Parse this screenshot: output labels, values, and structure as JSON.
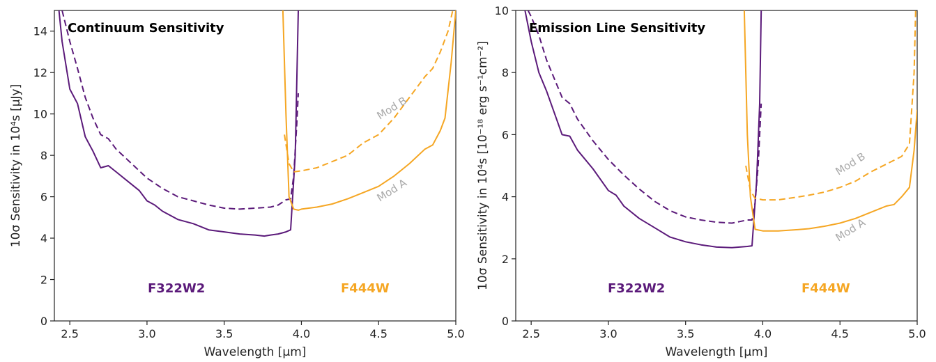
{
  "colors": {
    "f322w2": "#5b1a7a",
    "f444w": "#f5a623",
    "annotation": "#a9a9a9"
  },
  "chart_data": [
    {
      "type": "line",
      "title": "Continuum Sensitivity",
      "xlabel": "Wavelength [μm]",
      "ylabel": "10σ Sensitivity in 10⁴s [μJy]",
      "xlim": [
        2.4,
        5.0
      ],
      "ylim": [
        0,
        15
      ],
      "xticks": [
        "2.5",
        "3.0",
        "3.5",
        "4.0",
        "4.5",
        "5.0"
      ],
      "yticks": [
        "0",
        "2",
        "4",
        "6",
        "8",
        "10",
        "12",
        "14"
      ],
      "filter_labels": [
        "F322W2",
        "F444W"
      ],
      "annotations": [
        "Mod B",
        "Mod A"
      ],
      "series": [
        {
          "name": "F322W2 Mod A",
          "filter": "F322W2",
          "style": "solid",
          "points": [
            [
              2.43,
              15.0
            ],
            [
              2.45,
              13.5
            ],
            [
              2.5,
              11.2
            ],
            [
              2.55,
              10.5
            ],
            [
              2.6,
              8.9
            ],
            [
              2.65,
              8.2
            ],
            [
              2.7,
              7.4
            ],
            [
              2.75,
              7.5
            ],
            [
              2.8,
              7.2
            ],
            [
              2.9,
              6.6
            ],
            [
              2.95,
              6.3
            ],
            [
              3.0,
              5.8
            ],
            [
              3.05,
              5.6
            ],
            [
              3.1,
              5.3
            ],
            [
              3.2,
              4.9
            ],
            [
              3.3,
              4.7
            ],
            [
              3.4,
              4.4
            ],
            [
              3.5,
              4.3
            ],
            [
              3.6,
              4.2
            ],
            [
              3.7,
              4.15
            ],
            [
              3.76,
              4.1
            ],
            [
              3.8,
              4.15
            ],
            [
              3.85,
              4.2
            ],
            [
              3.9,
              4.3
            ],
            [
              3.93,
              4.4
            ],
            [
              3.96,
              8.0
            ],
            [
              3.98,
              15.0
            ]
          ]
        },
        {
          "name": "F322W2 Mod B",
          "filter": "F322W2",
          "style": "dashed",
          "points": [
            [
              2.45,
              15.0
            ],
            [
              2.5,
              13.5
            ],
            [
              2.55,
              12.2
            ],
            [
              2.6,
              10.8
            ],
            [
              2.65,
              9.8
            ],
            [
              2.7,
              9.0
            ],
            [
              2.75,
              8.8
            ],
            [
              2.8,
              8.3
            ],
            [
              2.9,
              7.6
            ],
            [
              3.0,
              6.9
            ],
            [
              3.1,
              6.4
            ],
            [
              3.2,
              6.0
            ],
            [
              3.3,
              5.8
            ],
            [
              3.4,
              5.6
            ],
            [
              3.5,
              5.45
            ],
            [
              3.6,
              5.4
            ],
            [
              3.7,
              5.45
            ],
            [
              3.8,
              5.5
            ],
            [
              3.85,
              5.6
            ],
            [
              3.9,
              5.85
            ],
            [
              3.93,
              5.9
            ],
            [
              3.95,
              7.0
            ],
            [
              3.97,
              9.5
            ],
            [
              3.98,
              11.0
            ]
          ]
        },
        {
          "name": "F444W Mod A",
          "filter": "F444W",
          "style": "solid",
          "points": [
            [
              3.88,
              15.0
            ],
            [
              3.9,
              10.0
            ],
            [
              3.92,
              6.0
            ],
            [
              3.95,
              5.4
            ],
            [
              3.98,
              5.35
            ],
            [
              4.0,
              5.4
            ],
            [
              4.1,
              5.5
            ],
            [
              4.2,
              5.65
            ],
            [
              4.3,
              5.9
            ],
            [
              4.4,
              6.2
            ],
            [
              4.5,
              6.5
            ],
            [
              4.6,
              7.0
            ],
            [
              4.7,
              7.6
            ],
            [
              4.8,
              8.3
            ],
            [
              4.85,
              8.5
            ],
            [
              4.9,
              9.2
            ],
            [
              4.93,
              9.8
            ],
            [
              4.97,
              12.5
            ],
            [
              5.0,
              15.0
            ]
          ]
        },
        {
          "name": "F444W Mod B",
          "filter": "F444W",
          "style": "dashed",
          "points": [
            [
              3.89,
              9.0
            ],
            [
              3.92,
              7.6
            ],
            [
              3.95,
              7.2
            ],
            [
              4.0,
              7.25
            ],
            [
              4.1,
              7.4
            ],
            [
              4.2,
              7.7
            ],
            [
              4.3,
              8.0
            ],
            [
              4.4,
              8.6
            ],
            [
              4.5,
              9.0
            ],
            [
              4.6,
              9.8
            ],
            [
              4.7,
              10.8
            ],
            [
              4.8,
              11.8
            ],
            [
              4.85,
              12.2
            ],
            [
              4.9,
              13.0
            ],
            [
              4.95,
              14.0
            ],
            [
              4.98,
              15.0
            ]
          ]
        }
      ]
    },
    {
      "type": "line",
      "title": "Emission Line Sensitivity",
      "xlabel": "Wavelength [μm]",
      "ylabel": "10σ Sensitivity in 10⁴s [10⁻¹⁸ erg s⁻¹cm⁻²]",
      "xlim": [
        2.4,
        5.0
      ],
      "ylim": [
        0,
        10
      ],
      "xticks": [
        "2.5",
        "3.0",
        "3.5",
        "4.0",
        "4.5",
        "5.0"
      ],
      "yticks": [
        "0",
        "2",
        "4",
        "6",
        "8",
        "10"
      ],
      "filter_labels": [
        "F322W2",
        "F444W"
      ],
      "annotations": [
        "Mod B",
        "Mod A"
      ],
      "series": [
        {
          "name": "F322W2 Mod A",
          "filter": "F322W2",
          "style": "solid",
          "points": [
            [
              2.46,
              10.0
            ],
            [
              2.5,
              9.0
            ],
            [
              2.55,
              8.0
            ],
            [
              2.6,
              7.4
            ],
            [
              2.65,
              6.7
            ],
            [
              2.7,
              6.0
            ],
            [
              2.75,
              5.95
            ],
            [
              2.8,
              5.5
            ],
            [
              2.9,
              4.9
            ],
            [
              3.0,
              4.2
            ],
            [
              3.05,
              4.05
            ],
            [
              3.1,
              3.7
            ],
            [
              3.2,
              3.3
            ],
            [
              3.3,
              3.0
            ],
            [
              3.4,
              2.7
            ],
            [
              3.5,
              2.55
            ],
            [
              3.6,
              2.45
            ],
            [
              3.7,
              2.38
            ],
            [
              3.8,
              2.36
            ],
            [
              3.85,
              2.38
            ],
            [
              3.9,
              2.4
            ],
            [
              3.93,
              2.42
            ],
            [
              3.96,
              4.5
            ],
            [
              3.98,
              7.0
            ],
            [
              3.99,
              10.0
            ]
          ]
        },
        {
          "name": "F322W2 Mod B",
          "filter": "F322W2",
          "style": "dashed",
          "points": [
            [
              2.48,
              10.0
            ],
            [
              2.5,
              9.8
            ],
            [
              2.55,
              9.2
            ],
            [
              2.6,
              8.4
            ],
            [
              2.65,
              7.8
            ],
            [
              2.7,
              7.2
            ],
            [
              2.75,
              7.0
            ],
            [
              2.8,
              6.5
            ],
            [
              2.9,
              5.8
            ],
            [
              3.0,
              5.2
            ],
            [
              3.1,
              4.7
            ],
            [
              3.2,
              4.25
            ],
            [
              3.3,
              3.85
            ],
            [
              3.4,
              3.55
            ],
            [
              3.5,
              3.35
            ],
            [
              3.6,
              3.25
            ],
            [
              3.7,
              3.18
            ],
            [
              3.8,
              3.15
            ],
            [
              3.85,
              3.2
            ],
            [
              3.9,
              3.25
            ],
            [
              3.93,
              3.25
            ],
            [
              3.95,
              3.8
            ],
            [
              3.97,
              5.0
            ],
            [
              3.99,
              7.0
            ]
          ]
        },
        {
          "name": "F444W Mod A",
          "filter": "F444W",
          "style": "solid",
          "points": [
            [
              3.88,
              10.0
            ],
            [
              3.9,
              6.0
            ],
            [
              3.92,
              4.0
            ],
            [
              3.95,
              2.95
            ],
            [
              4.0,
              2.9
            ],
            [
              4.1,
              2.9
            ],
            [
              4.2,
              2.93
            ],
            [
              4.3,
              2.97
            ],
            [
              4.4,
              3.05
            ],
            [
              4.5,
              3.15
            ],
            [
              4.6,
              3.3
            ],
            [
              4.7,
              3.5
            ],
            [
              4.8,
              3.7
            ],
            [
              4.85,
              3.75
            ],
            [
              4.9,
              4.0
            ],
            [
              4.95,
              4.3
            ],
            [
              4.98,
              5.5
            ],
            [
              5.0,
              6.8
            ]
          ]
        },
        {
          "name": "F444W Mod B",
          "filter": "F444W",
          "style": "dashed",
          "points": [
            [
              3.89,
              5.0
            ],
            [
              3.92,
              4.2
            ],
            [
              3.95,
              3.95
            ],
            [
              4.0,
              3.9
            ],
            [
              4.1,
              3.9
            ],
            [
              4.2,
              3.97
            ],
            [
              4.3,
              4.05
            ],
            [
              4.4,
              4.15
            ],
            [
              4.5,
              4.3
            ],
            [
              4.6,
              4.5
            ],
            [
              4.7,
              4.8
            ],
            [
              4.8,
              5.05
            ],
            [
              4.9,
              5.3
            ],
            [
              4.95,
              5.7
            ],
            [
              4.98,
              8.0
            ],
            [
              4.99,
              10.0
            ]
          ]
        }
      ]
    }
  ]
}
